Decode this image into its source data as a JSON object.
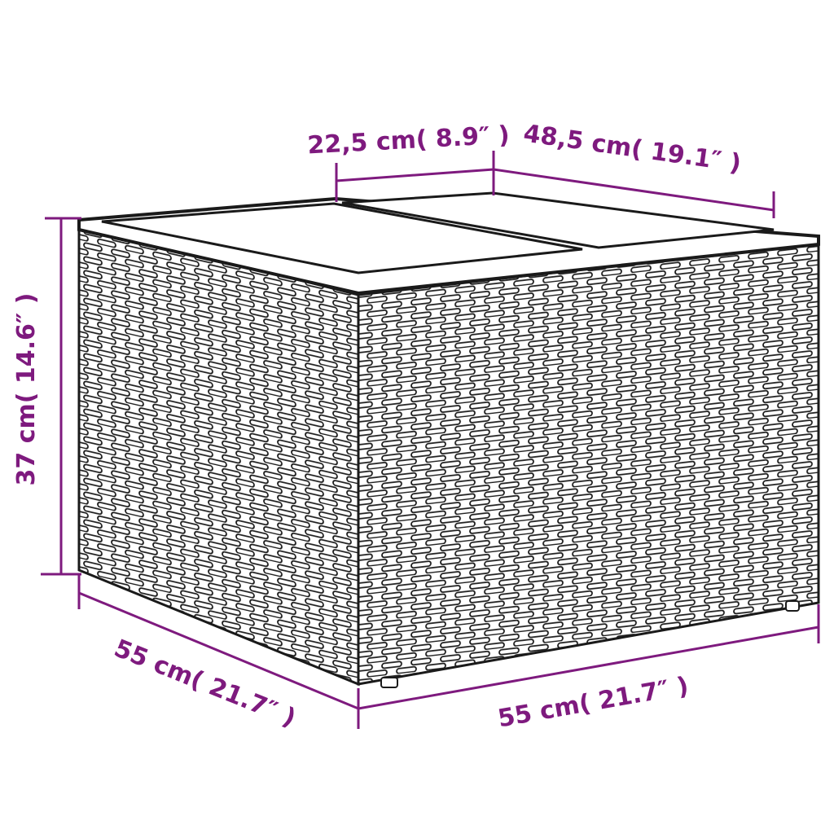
{
  "colors": {
    "dimension": "#7e1a7e",
    "outline": "#1a1a1a",
    "background": "#ffffff"
  },
  "product": "wicker-storage-table",
  "dimensions": {
    "top_panel_width": "22,5 cm( 8.9″ )",
    "top_depth": "48,5 cm( 19.1″ )",
    "height": "37 cm( 14.6″ )",
    "side_depth": "55 cm( 21.7″ )",
    "front_width": "55 cm( 21.7″ )"
  }
}
